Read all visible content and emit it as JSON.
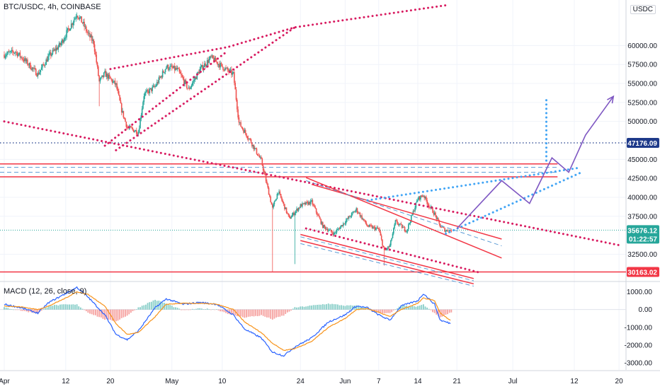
{
  "header": {
    "symbol_legend": "BTC/USDC, 4h, COINBASE",
    "macd_legend": "MACD (12, 26, close, 9)",
    "currency": "USDC"
  },
  "chart_data": [
    {
      "type": "candlestick",
      "title": "BTC/USDC, 4h, COINBASE",
      "ylim": [
        29000,
        66000
      ],
      "y_ticks": [
        {
          "value": 60000,
          "label": "60000.00"
        },
        {
          "value": 57500,
          "label": "57500.00"
        },
        {
          "value": 55000,
          "label": "55000.00"
        },
        {
          "value": 52500,
          "label": "52500.00"
        },
        {
          "value": 50000,
          "label": "50000.00"
        },
        {
          "value": 45000,
          "label": "45000.00"
        },
        {
          "value": 42500,
          "label": "42500.00"
        },
        {
          "value": 40000,
          "label": "40000.00"
        },
        {
          "value": 37500,
          "label": "37500.00"
        },
        {
          "value": 32500,
          "label": "32500.00"
        }
      ],
      "x_ticks": [
        {
          "date": "2021-04-01",
          "label": "Apr"
        },
        {
          "date": "2021-04-12",
          "label": "12"
        },
        {
          "date": "2021-04-20",
          "label": "20"
        },
        {
          "date": "2021-05-01",
          "label": "May"
        },
        {
          "date": "2021-05-10",
          "label": "10"
        },
        {
          "date": "2021-05-24",
          "label": "24"
        },
        {
          "date": "2021-06-01",
          "label": "Jun"
        },
        {
          "date": "2021-06-07",
          "label": "7"
        },
        {
          "date": "2021-06-14",
          "label": "14"
        },
        {
          "date": "2021-06-21",
          "label": "21"
        },
        {
          "date": "2021-07-01",
          "label": "Jul"
        },
        {
          "date": "2021-07-12",
          "label": "12"
        },
        {
          "date": "2021-07-20",
          "label": "20"
        }
      ],
      "x_axis_range": [
        "2021-04-01",
        "2021-07-21"
      ],
      "price_path": [
        [
          "2021-04-01",
          58800
        ],
        [
          "2021-04-03",
          59200
        ],
        [
          "2021-04-05",
          57800
        ],
        [
          "2021-04-07",
          56200
        ],
        [
          "2021-04-09",
          58600
        ],
        [
          "2021-04-11",
          60100
        ],
        [
          "2021-04-13",
          62800
        ],
        [
          "2021-04-14",
          64200
        ],
        [
          "2021-04-15",
          63000
        ],
        [
          "2021-04-16",
          61500
        ],
        [
          "2021-04-17",
          60400
        ],
        [
          "2021-04-18",
          55200
        ],
        [
          "2021-04-19",
          56300
        ],
        [
          "2021-04-21",
          54800
        ],
        [
          "2021-04-22",
          51500
        ],
        [
          "2021-04-23",
          49200
        ],
        [
          "2021-04-25",
          48600
        ],
        [
          "2021-04-26",
          53500
        ],
        [
          "2021-04-28",
          54600
        ],
        [
          "2021-04-30",
          57200
        ],
        [
          "2021-05-02",
          56800
        ],
        [
          "2021-05-04",
          54200
        ],
        [
          "2021-05-06",
          56800
        ],
        [
          "2021-05-08",
          58400
        ],
        [
          "2021-05-10",
          57200
        ],
        [
          "2021-05-12",
          56200
        ],
        [
          "2021-05-13",
          49800
        ],
        [
          "2021-05-15",
          47500
        ],
        [
          "2021-05-17",
          44800
        ],
        [
          "2021-05-19",
          38500
        ],
        [
          "2021-05-20",
          40800
        ],
        [
          "2021-05-22",
          37200
        ],
        [
          "2021-05-24",
          38900
        ],
        [
          "2021-05-26",
          39400
        ],
        [
          "2021-05-28",
          36200
        ],
        [
          "2021-05-30",
          35200
        ],
        [
          "2021-06-01",
          36800
        ],
        [
          "2021-06-03",
          38400
        ],
        [
          "2021-06-05",
          36200
        ],
        [
          "2021-06-07",
          35800
        ],
        [
          "2021-06-08",
          32900
        ],
        [
          "2021-06-09",
          33600
        ],
        [
          "2021-06-10",
          36800
        ],
        [
          "2021-06-12",
          35600
        ],
        [
          "2021-06-14",
          39800
        ],
        [
          "2021-06-15",
          40300
        ],
        [
          "2021-06-16",
          38900
        ],
        [
          "2021-06-17",
          37800
        ],
        [
          "2021-06-18",
          36200
        ],
        [
          "2021-06-19",
          35600
        ],
        [
          "2021-06-20",
          35676
        ]
      ],
      "spikes": [
        {
          "date": "2021-04-18",
          "low": 52000
        },
        {
          "date": "2021-05-19",
          "low": 30163
        },
        {
          "date": "2021-05-23",
          "low": 31200
        },
        {
          "date": "2021-06-08",
          "low": 31000
        }
      ],
      "current_price": {
        "value": 35676.12,
        "label": "35676.12",
        "countdown": "01:22:57",
        "color": "#26a69a"
      },
      "horizontal_levels": [
        {
          "value": 47176.09,
          "label": "47176.09",
          "style": "dotted",
          "color": "#1e3a8a"
        },
        {
          "value": 30163.02,
          "label": "30163.02",
          "style": "solid",
          "color": "#f23645"
        }
      ],
      "resistance_zone": {
        "upper": 44400,
        "lower": 42700,
        "dash_levels": [
          43950,
          43300
        ],
        "end_date": "2021-07-09"
      },
      "drawings": {
        "magenta_dotted_lines": [
          [
            [
              "2021-04-20",
              56900
            ],
            [
              "2021-05-11",
              59800
            ],
            [
              "2021-05-23",
              62400
            ],
            [
              "2021-06-19",
              65300
            ]
          ],
          [
            [
              "2021-04-21",
              46200
            ],
            [
              "2021-05-23",
              62400
            ]
          ],
          [
            [
              "2021-04-19",
              46800
            ],
            [
              "2021-05-11",
              59300
            ]
          ],
          [
            [
              "2021-04-01",
              50000
            ],
            [
              "2021-07-20",
              33700
            ]
          ],
          [
            [
              "2021-05-25",
              35900
            ],
            [
              "2021-06-25",
              30100
            ]
          ]
        ],
        "channel_lines": [
          [
            [
              "2021-05-25",
              42600
            ],
            [
              "2021-06-29",
              32000
            ]
          ],
          [
            [
              "2021-05-26",
              41700
            ],
            [
              "2021-06-29",
              34500
            ]
          ],
          [
            [
              "2021-05-24",
              35100
            ],
            [
              "2021-06-24",
              29300
            ]
          ],
          [
            [
              "2021-05-24",
              34300
            ],
            [
              "2021-06-24",
              28600
            ]
          ]
        ],
        "channel_dashes": [
          [
            [
              "2021-05-25",
              42200
            ],
            [
              "2021-06-29",
              33600
            ]
          ],
          [
            [
              "2021-05-24",
              34800
            ],
            [
              "2021-06-24",
              29000
            ]
          ],
          [
            [
              "2021-05-24",
              33900
            ],
            [
              "2021-06-24",
              28300
            ]
          ]
        ],
        "blue_dotted_lines": [
          [
            [
              "2021-06-05",
              39600
            ],
            [
              "2021-07-13",
              43900
            ]
          ],
          [
            [
              "2021-06-19",
              35200
            ],
            [
              "2021-07-13",
              43200
            ]
          ],
          [
            [
              "2021-07-07",
              52800
            ],
            [
              "2021-07-07",
              44300
            ]
          ]
        ],
        "projection": [
          [
            "2021-06-21",
            35900
          ],
          [
            "2021-06-29",
            42200
          ],
          [
            "2021-07-04",
            39200
          ],
          [
            "2021-07-08",
            45200
          ],
          [
            "2021-07-11",
            43300
          ],
          [
            "2021-07-14",
            48200
          ],
          [
            "2021-07-19",
            53300
          ]
        ]
      }
    },
    {
      "type": "line",
      "title": "MACD (12, 26, close, 9)",
      "ylim": [
        -3400,
        1500
      ],
      "y_ticks": [
        {
          "value": 1000,
          "label": "1000.00"
        },
        {
          "value": 0,
          "label": "0.00"
        },
        {
          "value": -1000,
          "label": "-1000.00"
        },
        {
          "value": -2000,
          "label": "-2000.00"
        },
        {
          "value": -3000,
          "label": "-3000.00"
        }
      ],
      "series": [
        {
          "color": "#2962ff",
          "points": [
            [
              "2021-04-01",
              300
            ],
            [
              "2021-04-04",
              100
            ],
            [
              "2021-04-07",
              -200
            ],
            [
              "2021-04-09",
              400
            ],
            [
              "2021-04-12",
              900
            ],
            [
              "2021-04-14",
              1250
            ],
            [
              "2021-04-16",
              700
            ],
            [
              "2021-04-19",
              -300
            ],
            [
              "2021-04-21",
              -1400
            ],
            [
              "2021-04-23",
              -1700
            ],
            [
              "2021-04-25",
              -1200
            ],
            [
              "2021-04-28",
              100
            ],
            [
              "2021-04-30",
              600
            ],
            [
              "2021-05-03",
              300
            ],
            [
              "2021-05-06",
              400
            ],
            [
              "2021-05-09",
              300
            ],
            [
              "2021-05-12",
              -300
            ],
            [
              "2021-05-14",
              -1100
            ],
            [
              "2021-05-17",
              -1600
            ],
            [
              "2021-05-19",
              -2400
            ],
            [
              "2021-05-21",
              -2600
            ],
            [
              "2021-05-23",
              -2100
            ],
            [
              "2021-05-26",
              -1600
            ],
            [
              "2021-05-29",
              -700
            ],
            [
              "2021-06-01",
              -300
            ],
            [
              "2021-06-03",
              200
            ],
            [
              "2021-06-05",
              100
            ],
            [
              "2021-06-07",
              -300
            ],
            [
              "2021-06-09",
              -600
            ],
            [
              "2021-06-11",
              200
            ],
            [
              "2021-06-14",
              500
            ],
            [
              "2021-06-15",
              900
            ],
            [
              "2021-06-17",
              300
            ],
            [
              "2021-06-18",
              -600
            ],
            [
              "2021-06-20",
              -800
            ]
          ]
        },
        {
          "color": "#f7931a",
          "points": [
            [
              "2021-04-01",
              200
            ],
            [
              "2021-04-04",
              150
            ],
            [
              "2021-04-07",
              0
            ],
            [
              "2021-04-09",
              200
            ],
            [
              "2021-04-12",
              650
            ],
            [
              "2021-04-14",
              1000
            ],
            [
              "2021-04-16",
              850
            ],
            [
              "2021-04-19",
              200
            ],
            [
              "2021-04-21",
              -800
            ],
            [
              "2021-04-23",
              -1400
            ],
            [
              "2021-04-25",
              -1300
            ],
            [
              "2021-04-28",
              -400
            ],
            [
              "2021-04-30",
              300
            ],
            [
              "2021-05-03",
              350
            ],
            [
              "2021-05-06",
              350
            ],
            [
              "2021-05-09",
              300
            ],
            [
              "2021-05-12",
              0
            ],
            [
              "2021-05-14",
              -700
            ],
            [
              "2021-05-17",
              -1300
            ],
            [
              "2021-05-19",
              -1900
            ],
            [
              "2021-05-21",
              -2300
            ],
            [
              "2021-05-23",
              -2200
            ],
            [
              "2021-05-26",
              -1800
            ],
            [
              "2021-05-29",
              -1000
            ],
            [
              "2021-06-01",
              -500
            ],
            [
              "2021-06-03",
              0
            ],
            [
              "2021-06-05",
              50
            ],
            [
              "2021-06-07",
              -150
            ],
            [
              "2021-06-09",
              -400
            ],
            [
              "2021-06-11",
              0
            ],
            [
              "2021-06-14",
              350
            ],
            [
              "2021-06-15",
              650
            ],
            [
              "2021-06-17",
              500
            ],
            [
              "2021-06-18",
              -200
            ],
            [
              "2021-06-20",
              -650
            ]
          ]
        }
      ],
      "histogram_colors": {
        "up": "#26a69a",
        "down": "#ef5350"
      }
    }
  ]
}
